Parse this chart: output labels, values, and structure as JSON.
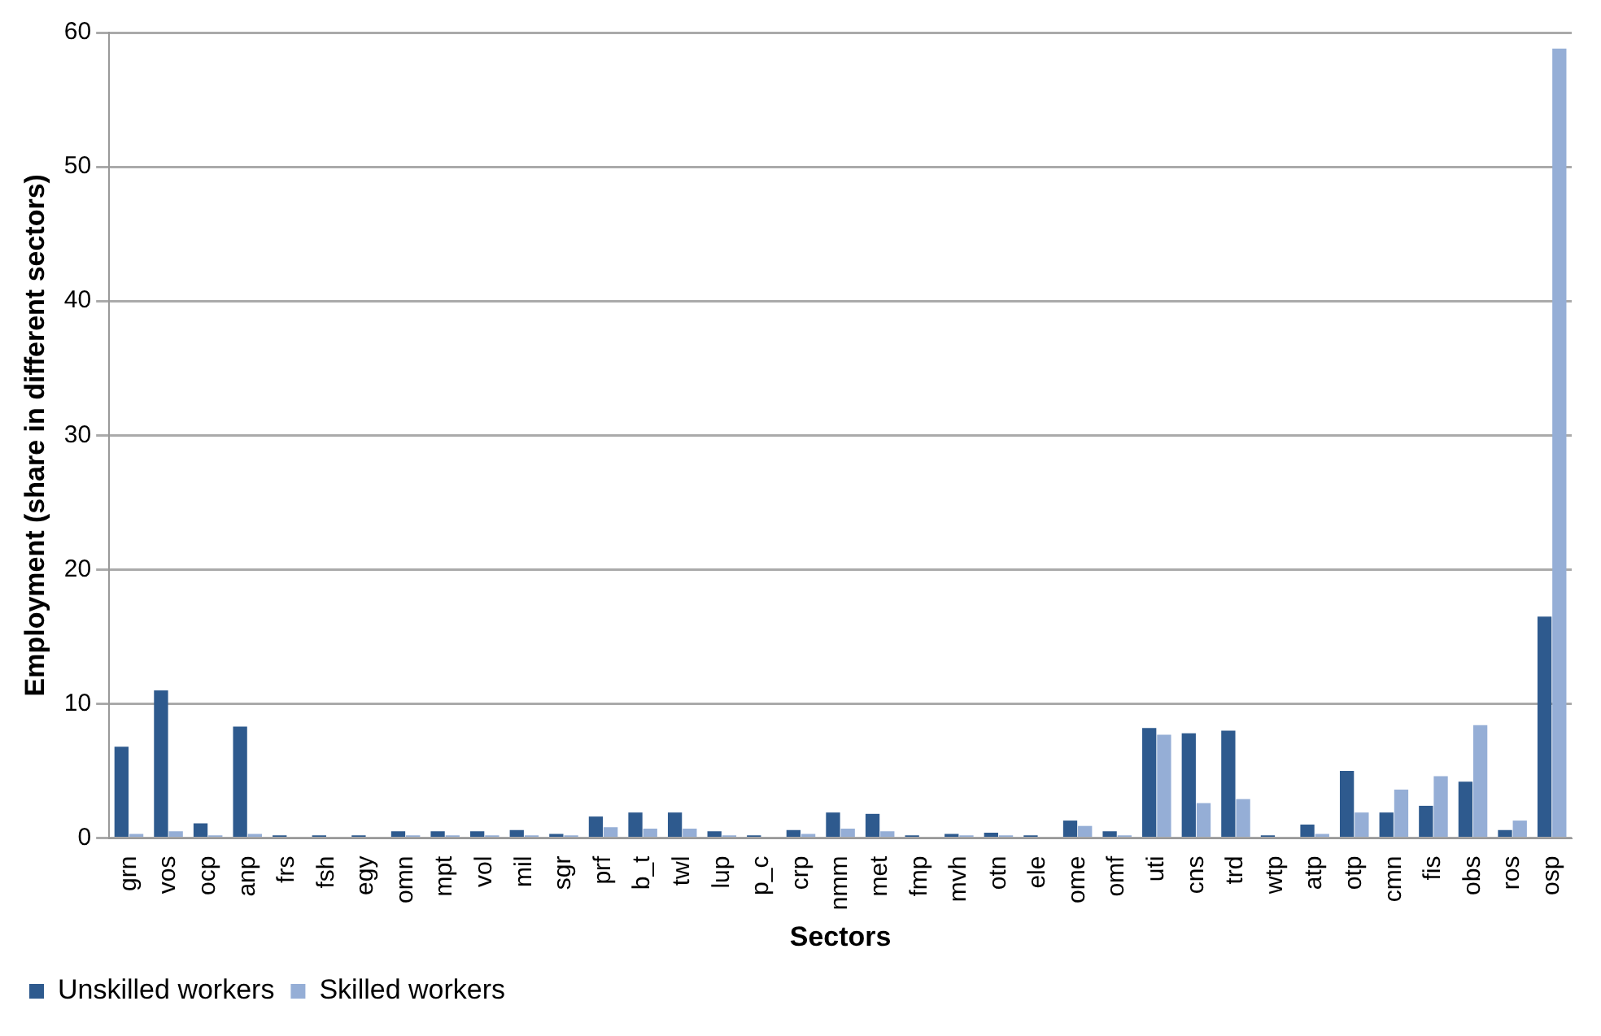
{
  "chart_data": {
    "type": "bar",
    "xlabel": "Sectors",
    "ylabel": "Employment (share in different sectors)",
    "categories": [
      "grn",
      "vos",
      "ocp",
      "anp",
      "frs",
      "fsh",
      "egy",
      "omn",
      "mpt",
      "vol",
      "mil",
      "sgr",
      "prf",
      "b_t",
      "twl",
      "lup",
      "p_c",
      "crp",
      "nmm",
      "met",
      "fmp",
      "mvh",
      "otn",
      "ele",
      "ome",
      "omf",
      "uti",
      "cns",
      "trd",
      "wtp",
      "atp",
      "otp",
      "cmn",
      "fis",
      "obs",
      "ros",
      "osp"
    ],
    "series": [
      {
        "name": "Unskilled workers",
        "color": "#2e5a8e",
        "values": [
          6.8,
          11,
          1.1,
          8.3,
          0.2,
          0.2,
          0.2,
          0.5,
          0.5,
          0.5,
          0.6,
          0.3,
          1.6,
          1.9,
          1.9,
          0.5,
          0.2,
          0.6,
          1.9,
          1.8,
          0.2,
          0.3,
          0.4,
          0.2,
          1.3,
          0.5,
          8.2,
          7.8,
          8.0,
          0.2,
          1.0,
          5.0,
          1.9,
          2.4,
          4.2,
          0.6,
          16.5
        ]
      },
      {
        "name": "Skilled workers",
        "color": "#95aed6",
        "values": [
          0.3,
          0.5,
          0.2,
          0.3,
          0.1,
          0.1,
          0.1,
          0.2,
          0.2,
          0.2,
          0.2,
          0.2,
          0.8,
          0.7,
          0.7,
          0.2,
          0.1,
          0.3,
          0.7,
          0.5,
          0.1,
          0.2,
          0.2,
          0.1,
          0.9,
          0.2,
          7.7,
          2.6,
          2.9,
          0.1,
          0.3,
          1.9,
          3.6,
          4.6,
          8.4,
          1.3,
          58.8
        ]
      }
    ],
    "ylim": [
      0,
      60
    ],
    "yticks": [
      0,
      10,
      20,
      30,
      40,
      50,
      60
    ],
    "grid": "y",
    "legend": "bottom left"
  }
}
